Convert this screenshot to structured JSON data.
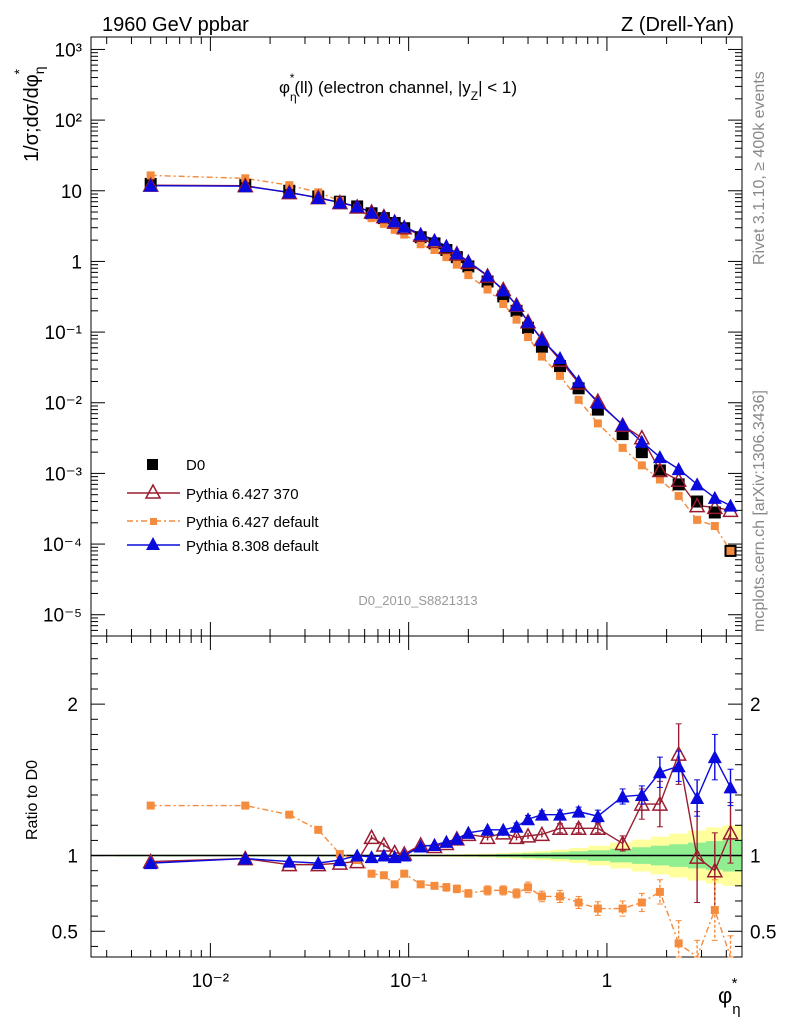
{
  "header": {
    "left": "1960 GeV ppbar",
    "right": "Z (Drell-Yan)"
  },
  "side_labels": {
    "rivet": "Rivet 3.1.10, ≥ 400k events",
    "mcplots": "mcplots.cern.ch [arXiv:1306.3436]"
  },
  "chart_data": [
    {
      "type": "scatter",
      "title": "φ*η(ll) (electron channel, |yZ| < 1)",
      "ylabel": "1/σ;dσ/dφ*η",
      "xlabel": "φ*η",
      "xscale": "log",
      "yscale": "log",
      "xlim": [
        0.0025,
        4.8
      ],
      "ylim": [
        5e-06,
        1500
      ],
      "analysis_label": "D0_2010_S8821313",
      "xtick_labels": [
        "10⁻²",
        "10⁻¹",
        "1"
      ],
      "ytick_labels": [
        "10⁻⁵",
        "10⁻⁴",
        "10⁻³",
        "10⁻²",
        "10⁻¹",
        "1",
        "10",
        "10²",
        "10³"
      ],
      "legend_position": "lower-left",
      "x": [
        0.005,
        0.015,
        0.025,
        0.035,
        0.045,
        0.055,
        0.065,
        0.075,
        0.085,
        0.095,
        0.115,
        0.135,
        0.155,
        0.175,
        0.2,
        0.25,
        0.3,
        0.35,
        0.4,
        0.47,
        0.58,
        0.72,
        0.9,
        1.2,
        1.5,
        1.85,
        2.3,
        2.85,
        3.5,
        4.2
      ],
      "series": [
        {
          "name": "D0",
          "color": "#000000",
          "marker": "square",
          "values": [
            12.5,
            12.0,
            10.0,
            8.3,
            7.0,
            6.0,
            4.8,
            4.1,
            3.5,
            2.95,
            2.2,
            1.8,
            1.45,
            1.15,
            0.85,
            0.52,
            0.32,
            0.2,
            0.115,
            0.062,
            0.033,
            0.016,
            0.008,
            0.0036,
            0.002,
            0.0011,
            0.0007,
            0.0004,
            0.00028,
            8e-05
          ]
        },
        {
          "name": "Pythia 6.427 370",
          "color": "#9b1b30",
          "marker": "triangle-open",
          "values": [
            12.0,
            11.8,
            9.4,
            8.0,
            6.8,
            5.9,
            5.0,
            4.3,
            3.6,
            3.0,
            2.35,
            1.92,
            1.58,
            1.28,
            0.97,
            0.62,
            0.4,
            0.24,
            0.14,
            0.08,
            0.04,
            0.019,
            0.0105,
            0.0048,
            0.0032,
            0.0011,
            0.0008,
            0.00035,
            0.00033,
            0.0003
          ]
        },
        {
          "name": "Pythia 6.427 default",
          "color": "#f58b3c",
          "marker": "square-small",
          "values": [
            16.5,
            15.0,
            12.0,
            9.5,
            7.2,
            5.6,
            4.1,
            3.4,
            2.8,
            2.4,
            1.75,
            1.45,
            1.15,
            0.9,
            0.64,
            0.4,
            0.25,
            0.15,
            0.085,
            0.045,
            0.024,
            0.011,
            0.0051,
            0.0023,
            0.0013,
            0.00082,
            0.00048,
            0.00022,
            0.00018,
            8e-05
          ]
        },
        {
          "name": "Pythia 8.308 default",
          "color": "#0a0adc",
          "marker": "triangle",
          "values": [
            11.8,
            11.6,
            9.5,
            7.9,
            6.8,
            6.0,
            4.9,
            4.3,
            3.7,
            3.1,
            2.42,
            2.0,
            1.65,
            1.3,
            1.0,
            0.63,
            0.39,
            0.24,
            0.14,
            0.078,
            0.043,
            0.02,
            0.01,
            0.0049,
            0.0028,
            0.0017,
            0.00115,
            0.0007,
            0.00045,
            0.00035
          ]
        }
      ]
    },
    {
      "type": "line",
      "ylabel": "Ratio to D0",
      "xscale": "log",
      "ylim": [
        0.33,
        2.45
      ],
      "ytick_labels": [
        "0.5",
        "1",
        "2"
      ],
      "reference": 1,
      "band_colors": {
        "inner": "#90ee90",
        "outer": "#ffff9e"
      },
      "x": [
        0.005,
        0.015,
        0.025,
        0.035,
        0.045,
        0.055,
        0.065,
        0.075,
        0.085,
        0.095,
        0.115,
        0.135,
        0.155,
        0.175,
        0.2,
        0.25,
        0.3,
        0.35,
        0.4,
        0.47,
        0.58,
        0.72,
        0.9,
        1.2,
        1.5,
        1.85,
        2.3,
        2.85,
        3.5,
        4.2
      ],
      "band_inner": [
        0.005,
        0.005,
        0.005,
        0.005,
        0.005,
        0.005,
        0.005,
        0.005,
        0.005,
        0.005,
        0.005,
        0.005,
        0.005,
        0.005,
        0.006,
        0.008,
        0.01,
        0.012,
        0.015,
        0.018,
        0.022,
        0.028,
        0.035,
        0.045,
        0.055,
        0.065,
        0.075,
        0.085,
        0.095,
        0.105
      ],
      "band_outer": [
        0.005,
        0.005,
        0.005,
        0.005,
        0.005,
        0.005,
        0.005,
        0.005,
        0.005,
        0.005,
        0.006,
        0.007,
        0.008,
        0.009,
        0.01,
        0.013,
        0.016,
        0.02,
        0.025,
        0.03,
        0.038,
        0.05,
        0.065,
        0.085,
        0.105,
        0.125,
        0.145,
        0.165,
        0.185,
        0.2
      ],
      "series": [
        {
          "name": "Pythia 6.427 370",
          "color": "#9b1b30",
          "values": [
            0.96,
            0.98,
            0.94,
            0.94,
            0.95,
            0.96,
            1.12,
            1.07,
            1.02,
            1.01,
            1.07,
            1.06,
            1.08,
            1.11,
            1.14,
            1.12,
            1.15,
            1.12,
            1.13,
            1.14,
            1.18,
            1.18,
            1.18,
            1.08,
            1.34,
            1.34,
            1.67,
            0.99,
            0.9,
            1.15
          ],
          "err": [
            0.01,
            0.01,
            0.01,
            0.01,
            0.01,
            0.01,
            0.015,
            0.015,
            0.015,
            0.015,
            0.015,
            0.015,
            0.015,
            0.015,
            0.02,
            0.02,
            0.02,
            0.02,
            0.02,
            0.02,
            0.03,
            0.03,
            0.03,
            0.05,
            0.1,
            0.15,
            0.2,
            0.3,
            0.25,
            0.2
          ]
        },
        {
          "name": "Pythia 6.427 default",
          "color": "#f58b3c",
          "values": [
            1.33,
            1.33,
            1.27,
            1.17,
            1.01,
            0.97,
            0.88,
            0.87,
            0.81,
            0.88,
            0.81,
            0.8,
            0.79,
            0.78,
            0.75,
            0.77,
            0.77,
            0.75,
            0.79,
            0.73,
            0.73,
            0.69,
            0.65,
            0.65,
            0.69,
            0.76,
            0.42,
            0.29,
            0.64,
            0.32
          ],
          "err": [
            0.01,
            0.01,
            0.01,
            0.01,
            0.01,
            0.01,
            0.015,
            0.015,
            0.02,
            0.02,
            0.02,
            0.02,
            0.025,
            0.025,
            0.025,
            0.03,
            0.03,
            0.03,
            0.035,
            0.035,
            0.04,
            0.04,
            0.045,
            0.05,
            0.06,
            0.08,
            0.15,
            0.15,
            0.2,
            0.15
          ]
        },
        {
          "name": "Pythia 8.308 default",
          "color": "#0a0adc",
          "values": [
            0.95,
            0.98,
            0.96,
            0.95,
            0.97,
            1.0,
            0.99,
            1.0,
            0.99,
            1.0,
            1.06,
            1.07,
            1.09,
            1.11,
            1.15,
            1.17,
            1.17,
            1.19,
            1.24,
            1.27,
            1.27,
            1.29,
            1.26,
            1.39,
            1.4,
            1.55,
            1.59,
            1.38,
            1.65,
            1.45
          ],
          "err": [
            0.01,
            0.01,
            0.01,
            0.01,
            0.01,
            0.01,
            0.01,
            0.01,
            0.01,
            0.01,
            0.015,
            0.015,
            0.015,
            0.015,
            0.02,
            0.02,
            0.02,
            0.025,
            0.025,
            0.025,
            0.03,
            0.03,
            0.04,
            0.05,
            0.06,
            0.1,
            0.1,
            0.12,
            0.15,
            0.12
          ]
        }
      ]
    }
  ]
}
